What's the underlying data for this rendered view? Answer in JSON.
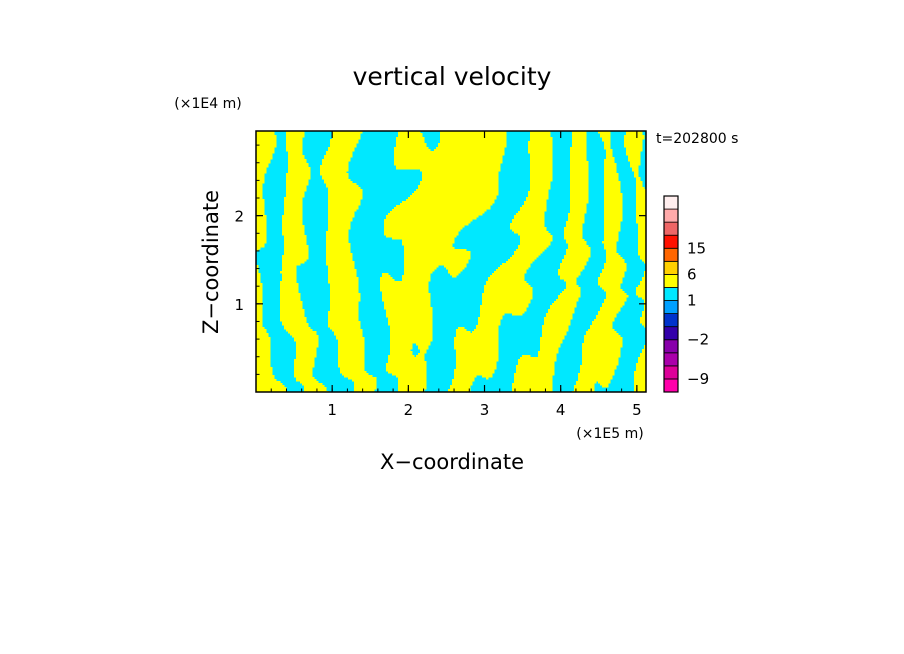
{
  "chart_data": {
    "type": "heatmap",
    "title": "vertical velocity",
    "xlabel": "X−coordinate",
    "ylabel": "Z−coordinate",
    "x_unit": "(×1E5 m)",
    "y_unit": "(×1E4 m)",
    "time_label": "t=202800 s",
    "xlim": [
      0,
      5.12
    ],
    "ylim": [
      0,
      2.96
    ],
    "x_ticks": [
      "1",
      "2",
      "3",
      "4",
      "5"
    ],
    "y_ticks": [
      "1",
      "2"
    ],
    "field_colors": {
      "positive": "#ffff00",
      "negative": "#00e8ff"
    },
    "colorbar": {
      "levels": [
        -12,
        -9,
        -6,
        -4,
        -2,
        -1,
        0,
        1,
        3,
        6,
        10,
        15,
        20,
        25
      ],
      "colors": [
        "#ff00aa",
        "#dd0099",
        "#aa00aa",
        "#8800aa",
        "#3300aa",
        "#0033cc",
        "#00a0ff",
        "#00e8ff",
        "#ffff00",
        "#ffd000",
        "#ff6600",
        "#ff1100",
        "#ee6666",
        "#ffaaaa",
        "#ffeeee"
      ],
      "tick_labels": [
        {
          "value": 15,
          "text": "15"
        },
        {
          "value": 6,
          "text": "6"
        },
        {
          "value": 1,
          "text": "1"
        },
        {
          "value": -2,
          "text": "−2"
        },
        {
          "value": -9,
          "text": "−9"
        }
      ]
    }
  }
}
